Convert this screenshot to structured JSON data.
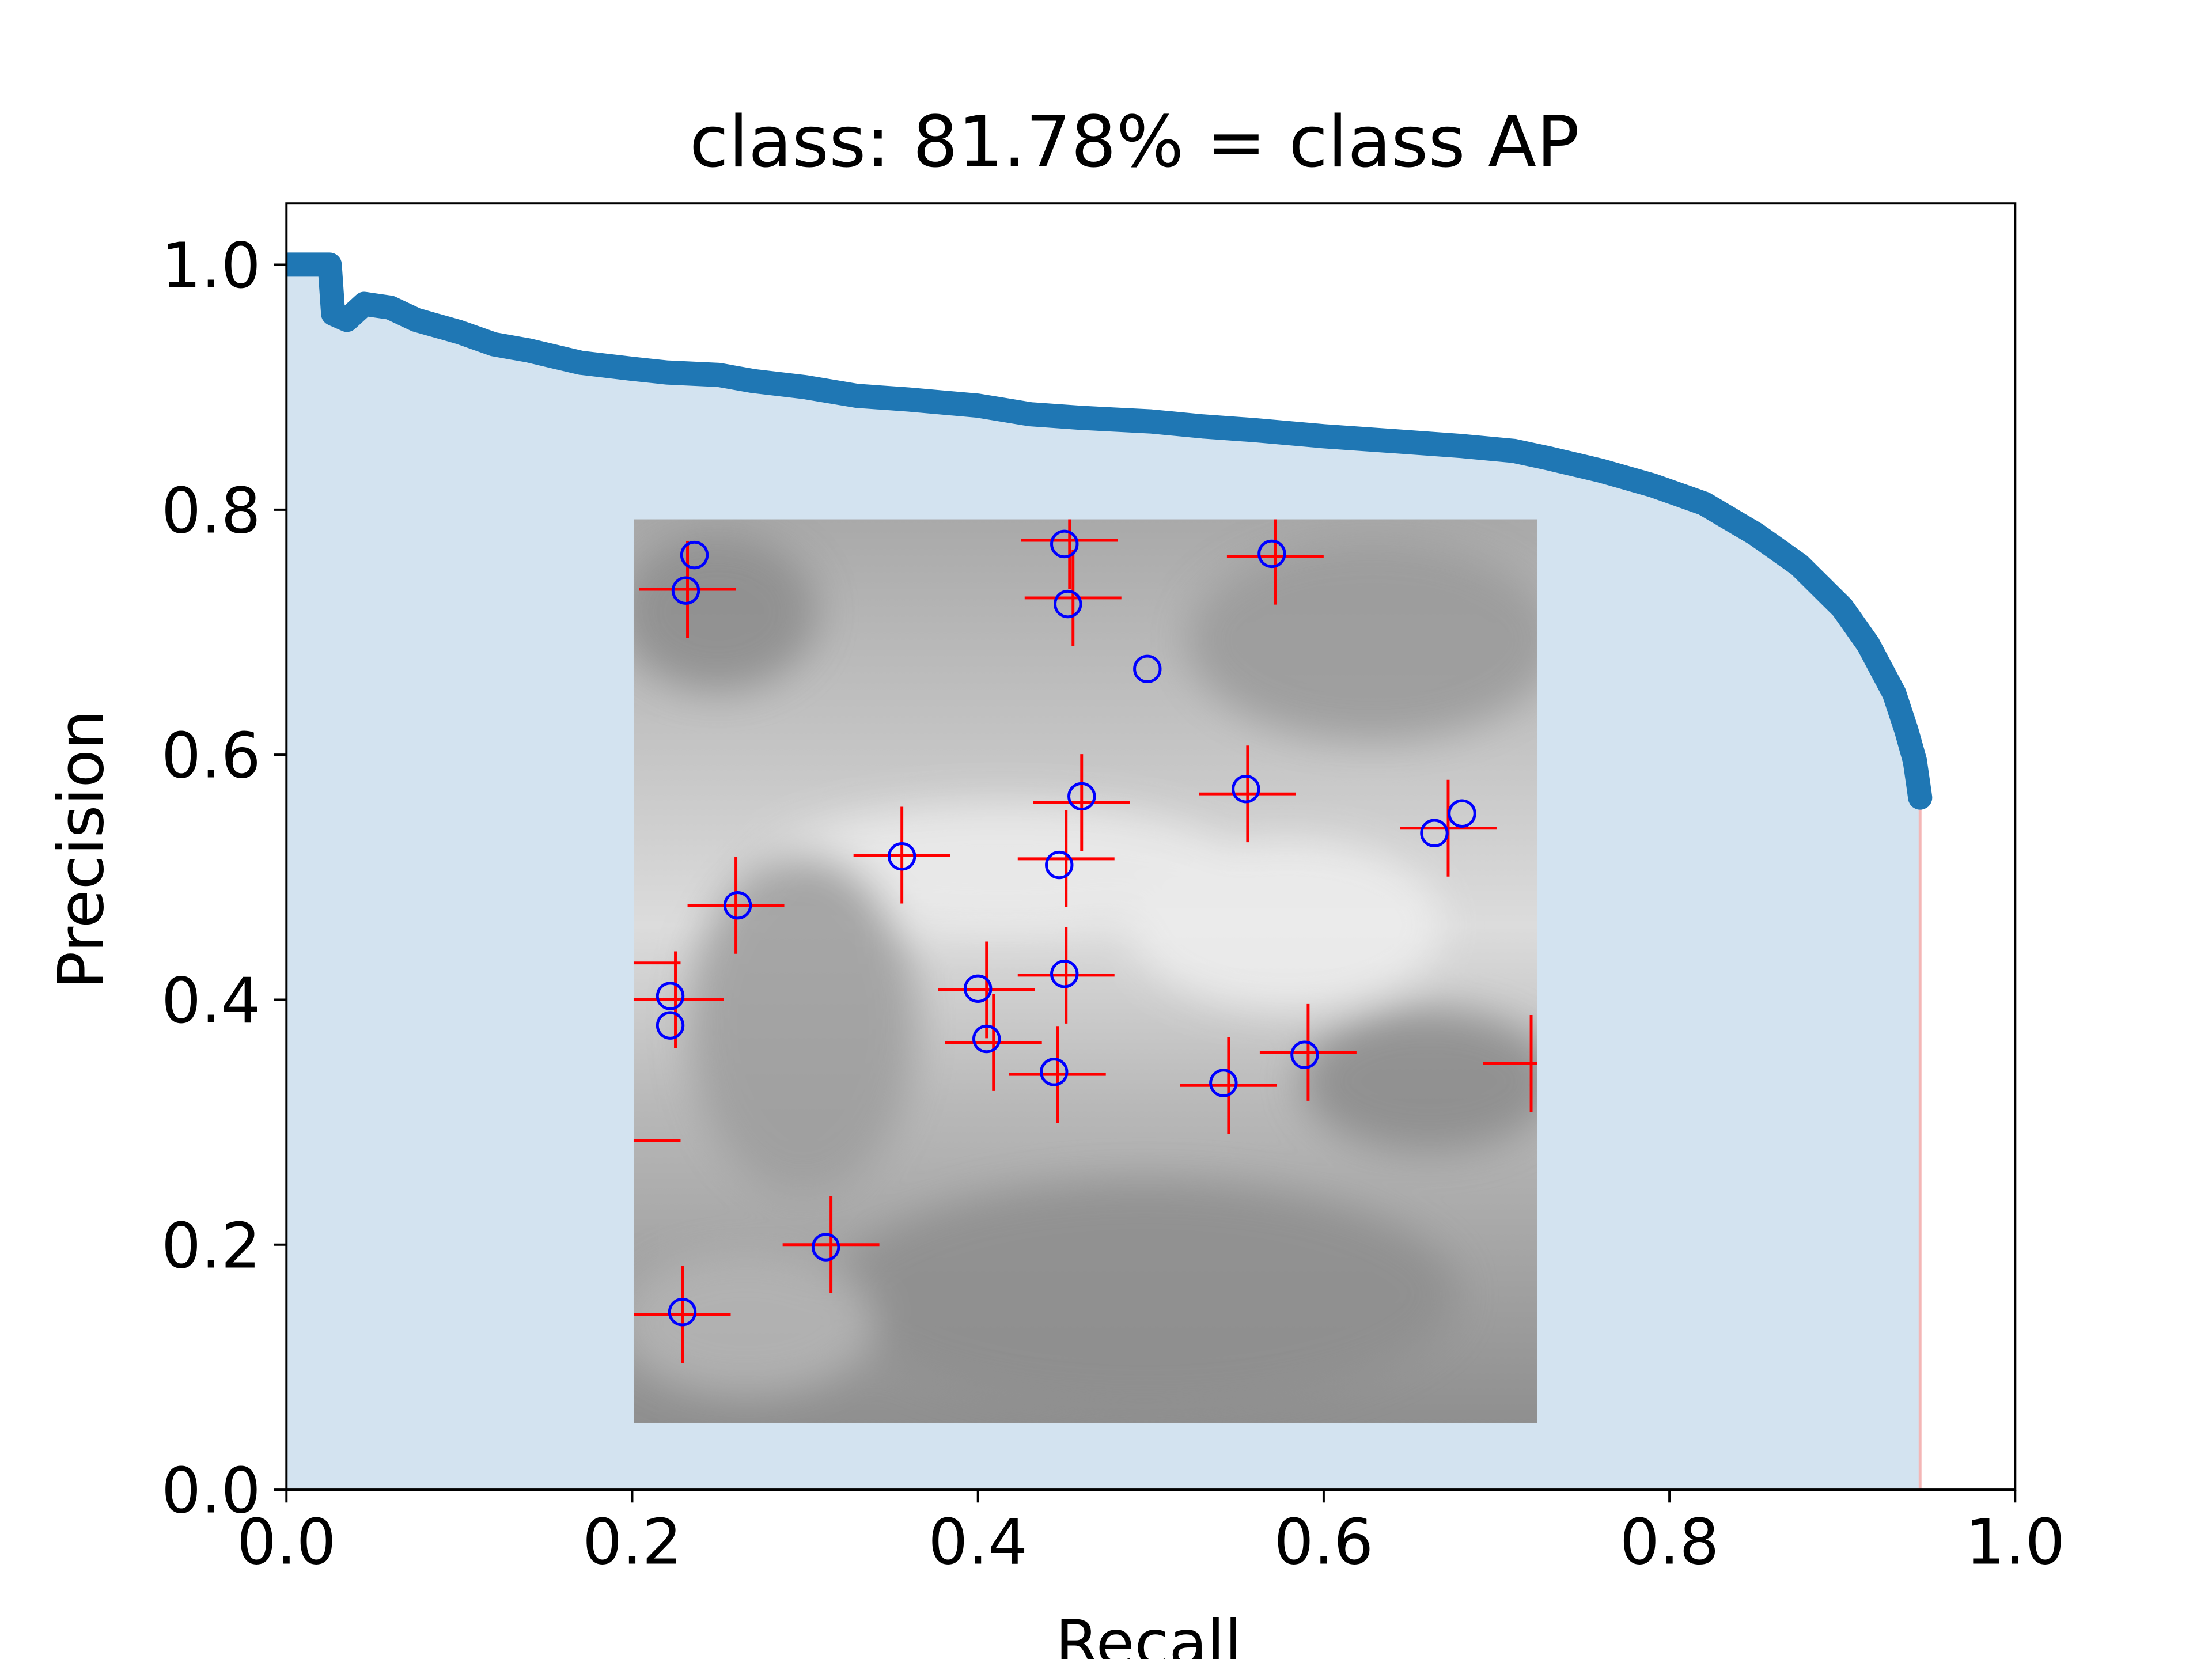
{
  "chart_data": {
    "type": "area",
    "title": "class: 81.78% = class AP",
    "xlabel": "Recall",
    "ylabel": "Precision",
    "xlim": [
      0.0,
      1.0
    ],
    "ylim": [
      0.0,
      1.05
    ],
    "grid": false,
    "x_ticks": [
      "0.0",
      "0.2",
      "0.4",
      "0.6",
      "0.8",
      "1.0"
    ],
    "y_ticks": [
      "0.0",
      "0.2",
      "0.4",
      "0.6",
      "0.8",
      "1.0"
    ],
    "curve_color": "#1f77b4",
    "fill_color": "#d3e3f0",
    "end_line_color": "#f4b6b6",
    "precision_recall_points": [
      [
        0.0,
        1.0
      ],
      [
        0.01,
        1.0
      ],
      [
        0.025,
        1.0
      ],
      [
        0.027,
        0.96
      ],
      [
        0.035,
        0.955
      ],
      [
        0.045,
        0.968
      ],
      [
        0.06,
        0.965
      ],
      [
        0.075,
        0.955
      ],
      [
        0.1,
        0.945
      ],
      [
        0.12,
        0.935
      ],
      [
        0.14,
        0.93
      ],
      [
        0.17,
        0.92
      ],
      [
        0.2,
        0.915
      ],
      [
        0.22,
        0.912
      ],
      [
        0.25,
        0.91
      ],
      [
        0.27,
        0.905
      ],
      [
        0.3,
        0.9
      ],
      [
        0.33,
        0.893
      ],
      [
        0.36,
        0.89
      ],
      [
        0.4,
        0.885
      ],
      [
        0.43,
        0.878
      ],
      [
        0.46,
        0.875
      ],
      [
        0.5,
        0.872
      ],
      [
        0.53,
        0.868
      ],
      [
        0.56,
        0.865
      ],
      [
        0.6,
        0.86
      ],
      [
        0.64,
        0.856
      ],
      [
        0.68,
        0.852
      ],
      [
        0.71,
        0.848
      ],
      [
        0.73,
        0.842
      ],
      [
        0.76,
        0.832
      ],
      [
        0.79,
        0.82
      ],
      [
        0.82,
        0.805
      ],
      [
        0.85,
        0.78
      ],
      [
        0.875,
        0.755
      ],
      [
        0.9,
        0.72
      ],
      [
        0.915,
        0.69
      ],
      [
        0.93,
        0.65
      ],
      [
        0.937,
        0.62
      ],
      [
        0.942,
        0.595
      ],
      [
        0.944,
        0.575
      ],
      [
        0.945,
        0.565
      ]
    ],
    "inset_image": {
      "extent": [
        0.2,
        0.72,
        0.06,
        0.79
      ],
      "circles": [
        [
          0.236,
          0.763
        ],
        [
          0.231,
          0.734
        ],
        [
          0.45,
          0.772
        ],
        [
          0.452,
          0.723
        ],
        [
          0.57,
          0.764
        ],
        [
          0.498,
          0.67
        ],
        [
          0.46,
          0.566
        ],
        [
          0.555,
          0.572
        ],
        [
          0.664,
          0.536
        ],
        [
          0.68,
          0.552
        ],
        [
          0.356,
          0.517
        ],
        [
          0.447,
          0.51
        ],
        [
          0.261,
          0.477
        ],
        [
          0.4,
          0.409
        ],
        [
          0.45,
          0.421
        ],
        [
          0.222,
          0.403
        ],
        [
          0.222,
          0.379
        ],
        [
          0.405,
          0.368
        ],
        [
          0.444,
          0.341
        ],
        [
          0.542,
          0.332
        ],
        [
          0.589,
          0.355
        ],
        [
          0.312,
          0.198
        ],
        [
          0.229,
          0.145
        ]
      ],
      "crosses": [
        [
          0.232,
          0.735
        ],
        [
          0.453,
          0.775
        ],
        [
          0.455,
          0.728
        ],
        [
          0.572,
          0.762
        ],
        [
          0.46,
          0.561
        ],
        [
          0.556,
          0.568
        ],
        [
          0.672,
          0.54
        ],
        [
          0.356,
          0.518
        ],
        [
          0.451,
          0.515
        ],
        [
          0.26,
          0.477
        ],
        [
          0.405,
          0.408
        ],
        [
          0.451,
          0.42
        ],
        [
          0.225,
          0.4
        ],
        [
          0.409,
          0.365
        ],
        [
          0.446,
          0.339
        ],
        [
          0.545,
          0.33
        ],
        [
          0.591,
          0.357
        ],
        [
          0.72,
          0.348
        ],
        [
          0.315,
          0.2
        ],
        [
          0.229,
          0.143
        ],
        [
          0.2,
          0.43
        ],
        [
          0.2,
          0.285
        ]
      ]
    }
  }
}
